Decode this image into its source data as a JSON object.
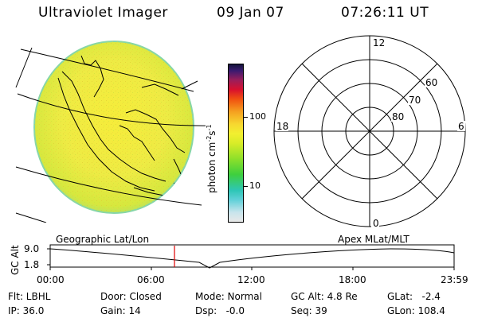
{
  "header": {
    "title": "Ultraviolet Imager",
    "date": "09 Jan 07",
    "time": "07:26:11 UT"
  },
  "colorbar": {
    "unit_base": "photon cm",
    "unit_exp1": "-2",
    "unit_mid": "s",
    "unit_exp2": "-1",
    "labels": [
      "100",
      "10"
    ]
  },
  "polar_plot": {
    "mlt_labels": {
      "top": "12",
      "bottom": "0",
      "left": "18",
      "right": "6"
    },
    "lat_labels": [
      "60",
      "70",
      "80"
    ]
  },
  "altitude_plot": {
    "left_label": "Geographic Lat/Lon",
    "right_label": "Apex MLat/MLT",
    "y_title": "GC Alt",
    "y_ticks": [
      "9.0",
      "1.8"
    ],
    "x_ticks": [
      "00:00",
      "06:00",
      "12:00",
      "18:00",
      "23:59"
    ],
    "marker_time": "07:26"
  },
  "info": {
    "flt": "Flt: LBHL",
    "ip": "IP: 36.0",
    "door": "Door: Closed",
    "gain": "Gain: 14",
    "mode": "Mode: Normal",
    "dsp": "Dsp:   -0.0",
    "gc_alt": "GC Alt: 4.8 Re",
    "seq": "Seq: 39",
    "glat": "GLat:   -2.4",
    "glon": "GLon: 108.4"
  }
}
